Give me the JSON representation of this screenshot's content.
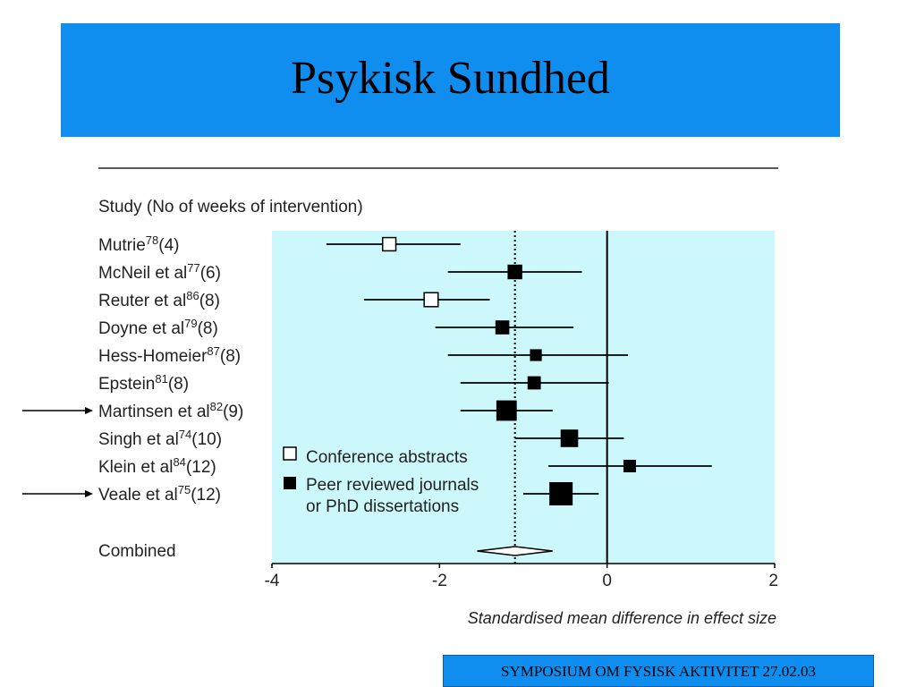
{
  "slide": {
    "title": "Psykisk Sundhed",
    "footer": "SYMPOSIUM OM FYSISK AKTIVITET 27.02.03"
  },
  "chart_data": {
    "type": "forest",
    "column_header": "Study (No of weeks of intervention)",
    "xlabel": "Standardised mean difference in effect size",
    "xlim": [
      -4,
      2
    ],
    "xticks": [
      -4,
      -2,
      0,
      2
    ],
    "reference_lines": {
      "no_effect": 0,
      "combined_estimate_dotted": -1.1
    },
    "plot_background": "#ccf8fc",
    "legend": {
      "placement": "inside-lower-left",
      "entries": [
        {
          "label": "Conference abstracts",
          "marker": "open-square"
        },
        {
          "label": "Peer reviewed journals",
          "label2": "or PhD dissertations",
          "marker": "filled-square"
        }
      ]
    },
    "studies": [
      {
        "name": "Mutrie",
        "ref": "78",
        "weeks": "(4)",
        "estimate": -2.6,
        "ci": [
          -3.35,
          -1.75
        ],
        "type": "conference",
        "weight": 0.3,
        "arrow": false
      },
      {
        "name": "McNeil et al",
        "ref": "77",
        "weeks": "(6)",
        "estimate": -1.1,
        "ci": [
          -1.9,
          -0.3
        ],
        "type": "peer",
        "weight": 0.4,
        "arrow": false
      },
      {
        "name": "Reuter et al",
        "ref": "86",
        "weeks": "(8)",
        "estimate": -2.1,
        "ci": [
          -2.9,
          -1.4
        ],
        "type": "conference",
        "weight": 0.35,
        "arrow": false
      },
      {
        "name": "Doyne et al",
        "ref": "79",
        "weeks": "(8)",
        "estimate": -1.25,
        "ci": [
          -2.05,
          -0.4
        ],
        "type": "peer",
        "weight": 0.35,
        "arrow": false
      },
      {
        "name": "Hess-Homeier",
        "ref": "87",
        "weeks": "(8)",
        "estimate": -0.85,
        "ci": [
          -1.9,
          0.25
        ],
        "type": "peer",
        "weight": 0.2,
        "arrow": false
      },
      {
        "name": "Epstein",
        "ref": "81",
        "weeks": "(8)",
        "estimate": -0.87,
        "ci": [
          -1.75,
          0.02
        ],
        "type": "peer",
        "weight": 0.3,
        "arrow": false
      },
      {
        "name": "Martinsen et al",
        "ref": "82",
        "weeks": "(9)",
        "estimate": -1.2,
        "ci": [
          -1.75,
          -0.65
        ],
        "type": "peer",
        "weight": 0.8,
        "arrow": true
      },
      {
        "name": "Singh et al",
        "ref": "74",
        "weeks": "(10)",
        "estimate": -0.45,
        "ci": [
          -1.1,
          0.2
        ],
        "type": "peer",
        "weight": 0.6,
        "arrow": false
      },
      {
        "name": "Klein et al",
        "ref": "84",
        "weeks": "(12)",
        "estimate": 0.27,
        "ci": [
          -0.7,
          1.25
        ],
        "type": "peer",
        "weight": 0.25,
        "arrow": false
      },
      {
        "name": "Veale et al",
        "ref": "75",
        "weeks": "(12)",
        "estimate": -0.55,
        "ci": [
          -1.0,
          -0.1
        ],
        "type": "peer",
        "weight": 1.0,
        "arrow": true
      }
    ],
    "combined": {
      "label": "Combined",
      "estimate": -1.1,
      "ci": [
        -1.55,
        -0.65
      ]
    }
  }
}
